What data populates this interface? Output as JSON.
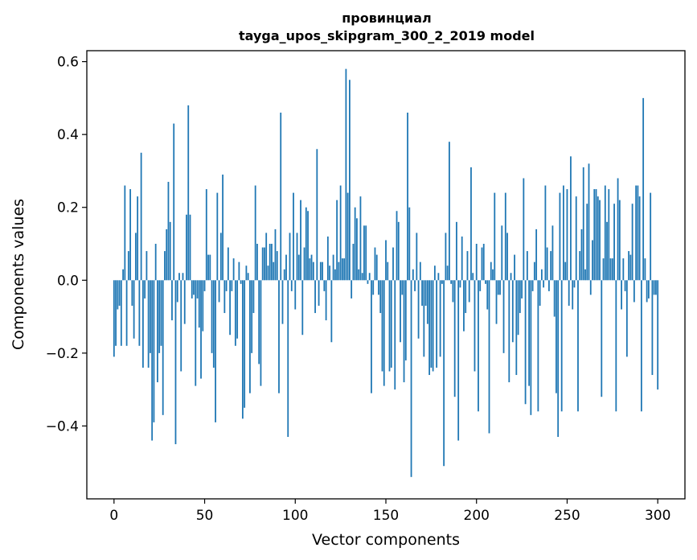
{
  "chart_data": {
    "type": "bar",
    "title": "провинциал\ntayga_upos_skipgram_300_2_2019 model",
    "title_lines": [
      "провинциал",
      "tayga_upos_skipgram_300_2_2019 model"
    ],
    "xlabel": "Vector components",
    "ylabel": "Components values",
    "xlim": [
      -15,
      315
    ],
    "ylim": [
      -0.6,
      0.63
    ],
    "xticks": [
      0,
      50,
      100,
      150,
      200,
      250,
      300
    ],
    "xtick_labels": [
      "0",
      "50",
      "100",
      "150",
      "200",
      "250",
      "300"
    ],
    "yticks": [
      -0.4,
      -0.2,
      0.0,
      0.2,
      0.4,
      0.6
    ],
    "ytick_labels": [
      "−0.4",
      "−0.2",
      "0.0",
      "0.2",
      "0.4",
      "0.6"
    ],
    "grid": false,
    "bar_color": "#1f77b4",
    "values": [
      -0.21,
      -0.18,
      -0.08,
      -0.07,
      -0.18,
      0.03,
      0.26,
      -0.18,
      0.08,
      0.25,
      -0.07,
      -0.16,
      0.13,
      0.23,
      -0.18,
      0.35,
      -0.24,
      -0.05,
      0.08,
      -0.24,
      -0.2,
      -0.44,
      -0.39,
      0.1,
      -0.28,
      -0.2,
      -0.18,
      -0.37,
      0.08,
      0.14,
      0.27,
      0.16,
      -0.11,
      0.43,
      -0.45,
      -0.06,
      0.02,
      -0.25,
      0.02,
      -0.12,
      0.18,
      0.48,
      0.18,
      -0.05,
      -0.04,
      -0.29,
      -0.05,
      -0.13,
      -0.27,
      -0.14,
      -0.03,
      0.25,
      0.07,
      0.07,
      -0.2,
      -0.24,
      -0.39,
      0.24,
      -0.06,
      0.13,
      0.29,
      -0.09,
      -0.03,
      0.09,
      -0.15,
      -0.03,
      0.06,
      -0.18,
      -0.16,
      0.05,
      -0.01,
      -0.38,
      -0.35,
      0.04,
      0.02,
      -0.31,
      -0.2,
      -0.09,
      0.26,
      0.1,
      -0.23,
      -0.29,
      0.09,
      0.09,
      0.13,
      0.04,
      0.1,
      0.1,
      0.05,
      0.14,
      0.08,
      -0.31,
      0.46,
      -0.12,
      0.03,
      0.07,
      -0.43,
      0.13,
      -0.03,
      0.24,
      -0.08,
      0.13,
      0.07,
      0.22,
      -0.15,
      0.09,
      0.2,
      0.19,
      0.06,
      0.07,
      0.05,
      -0.09,
      0.36,
      -0.07,
      0.05,
      0.05,
      -0.03,
      -0.11,
      0.12,
      0.04,
      -0.17,
      0.07,
      0.03,
      0.22,
      0.05,
      0.26,
      0.06,
      0.06,
      0.58,
      0.24,
      0.55,
      -0.05,
      0.1,
      0.2,
      0.17,
      0.03,
      0.23,
      0.02,
      0.15,
      0.15,
      -0.01,
      0.02,
      -0.31,
      -0.04,
      0.09,
      0.07,
      -0.04,
      -0.09,
      -0.25,
      -0.29,
      0.11,
      0.05,
      -0.25,
      -0.24,
      0.09,
      -0.3,
      0.19,
      0.16,
      -0.17,
      -0.04,
      -0.28,
      -0.22,
      0.46,
      0.2,
      -0.54,
      0.03,
      -0.03,
      0.13,
      -0.16,
      0.05,
      -0.07,
      -0.21,
      -0.07,
      -0.12,
      -0.26,
      -0.24,
      -0.25,
      0.04,
      -0.24,
      0.02,
      -0.21,
      -0.01,
      -0.51,
      0.13,
      0.04,
      0.38,
      -0.01,
      -0.06,
      -0.32,
      0.16,
      -0.44,
      -0.02,
      0.12,
      -0.14,
      -0.09,
      0.08,
      -0.06,
      0.31,
      0.02,
      -0.25,
      0.1,
      -0.36,
      -0.03,
      0.09,
      0.1,
      -0.01,
      -0.08,
      -0.42,
      0.05,
      0.03,
      0.24,
      -0.12,
      -0.04,
      -0.04,
      0.15,
      -0.2,
      0.24,
      0.13,
      -0.28,
      0.02,
      -0.17,
      0.07,
      -0.26,
      -0.15,
      -0.09,
      -0.05,
      0.28,
      -0.34,
      0.08,
      -0.29,
      -0.37,
      -0.03,
      0.05,
      0.14,
      -0.36,
      -0.07,
      0.03,
      -0.02,
      0.26,
      0.09,
      -0.03,
      0.08,
      0.15,
      -0.1,
      -0.31,
      -0.43,
      0.24,
      -0.36,
      0.26,
      0.05,
      0.25,
      -0.07,
      0.34,
      -0.08,
      -0.02,
      0.23,
      -0.36,
      0.08,
      0.14,
      0.31,
      0.03,
      0.21,
      0.32,
      -0.04,
      0.11,
      0.25,
      0.25,
      0.23,
      0.22,
      -0.32,
      0.06,
      0.26,
      0.16,
      0.25,
      0.06,
      0.06,
      0.21,
      -0.36,
      0.28,
      0.22,
      -0.08,
      0.06,
      -0.03,
      -0.21,
      0.08,
      0.07,
      0.21,
      -0.06,
      0.26,
      0.26,
      0.23,
      -0.36,
      0.5,
      0.06,
      -0.06,
      -0.05,
      0.24,
      -0.26,
      -0.04,
      -0.04,
      -0.3
    ]
  }
}
